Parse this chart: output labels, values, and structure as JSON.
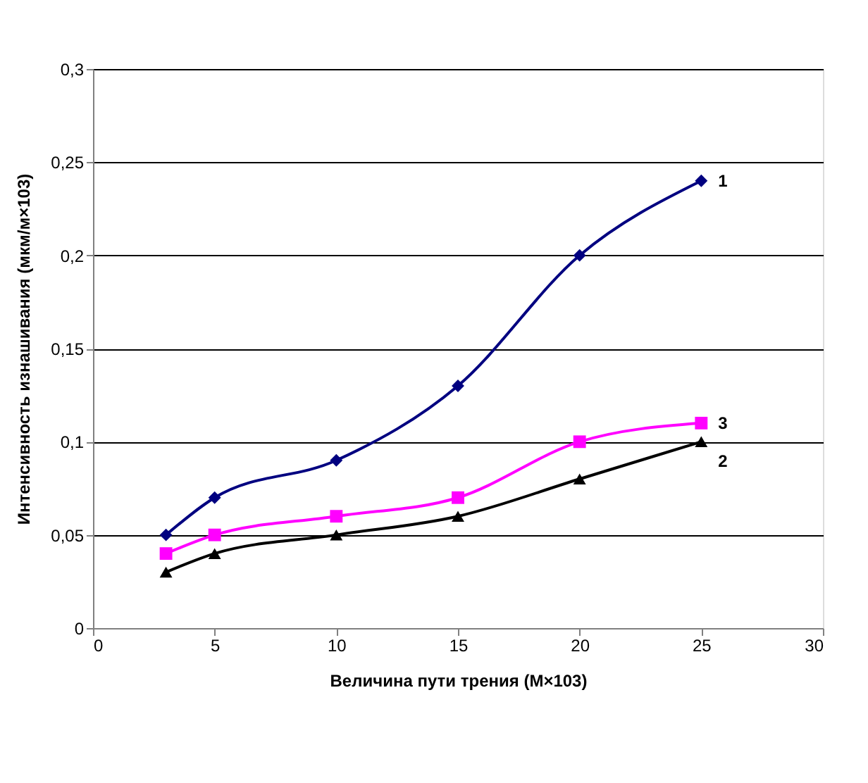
{
  "chart_data": {
    "type": "line",
    "xlabel": "Величина пути трения (М×103)",
    "ylabel": "Интенсивность изнашивания (мкм/м×103)",
    "x": [
      3,
      5,
      10,
      15,
      20,
      25
    ],
    "series": [
      {
        "name": "1",
        "color": "#000080",
        "marker": "diamond",
        "values": [
          0.05,
          0.07,
          0.09,
          0.13,
          0.2,
          0.24
        ]
      },
      {
        "name": "3",
        "color": "#ff00ff",
        "marker": "square",
        "values": [
          0.04,
          0.05,
          0.06,
          0.07,
          0.1,
          0.11
        ]
      },
      {
        "name": "2",
        "color": "#000000",
        "marker": "triangle",
        "values": [
          0.03,
          0.04,
          0.05,
          0.06,
          0.08,
          0.1
        ]
      }
    ],
    "xlim": [
      0,
      30
    ],
    "xticks": [
      0,
      5,
      10,
      15,
      20,
      25,
      30
    ],
    "ylim": [
      0,
      0.3
    ],
    "yticks": [
      0,
      {
        "value": 0.05,
        "label": "0,05"
      },
      {
        "value": 0.1,
        "label": "0,1"
      },
      {
        "value": 0.15,
        "label": "0,15"
      },
      {
        "value": 0.2,
        "label": "0,2"
      },
      {
        "value": 0.25,
        "label": "0,25"
      },
      {
        "value": 0.3,
        "label": "0,3"
      }
    ],
    "grid": "y",
    "line_style": "solid"
  }
}
